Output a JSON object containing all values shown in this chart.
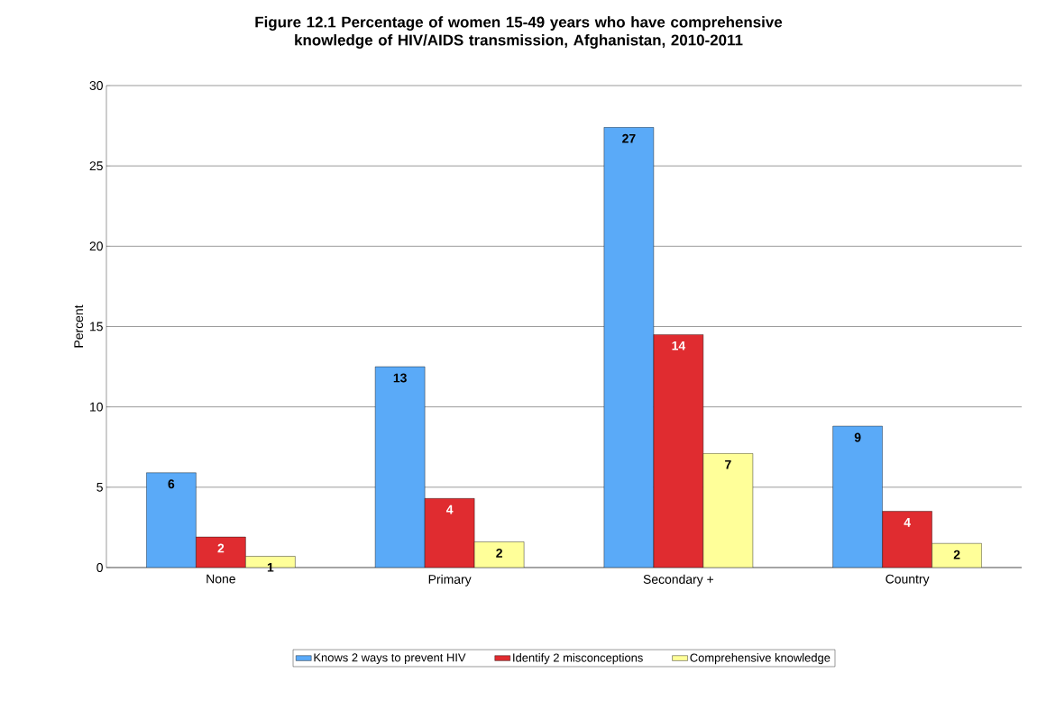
{
  "chart_data": {
    "type": "bar",
    "title": "Figure 12.1 Percentage of women 15-49 years who have comprehensive knowledge of HIV/AIDS transmission, Afghanistan, 2010-2011",
    "ylabel": "Percent",
    "categories": [
      "None",
      "Primary",
      "Secondary +",
      "Country"
    ],
    "series": [
      {
        "name": "Knows 2 ways to prevent HIV",
        "color": "#5aaaf8",
        "values": [
          5.9,
          12.5,
          27.4,
          8.8
        ],
        "value_labels": [
          "6",
          "13",
          "27",
          "9"
        ]
      },
      {
        "name": "Identify 2 misconceptions",
        "color": "#e02c30",
        "values": [
          1.9,
          4.3,
          14.5,
          3.5
        ],
        "value_labels": [
          "2",
          "4",
          "14",
          "4"
        ]
      },
      {
        "name": "Comprehensive knowledge",
        "color": "#ffff99",
        "values": [
          0.7,
          1.6,
          7.1,
          1.5
        ],
        "value_labels": [
          "1",
          "2",
          "7",
          "2"
        ]
      }
    ],
    "ylim": [
      0,
      30
    ],
    "yticks": [
      0,
      5,
      10,
      15,
      20,
      25,
      30
    ],
    "grid": "y",
    "legend": "bottom"
  }
}
